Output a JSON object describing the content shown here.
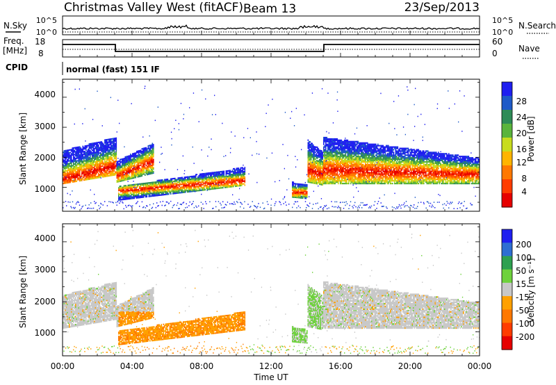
{
  "header": {
    "title": "Christmas Valley West (fitACF)",
    "beam": "Beam 13",
    "date": "23/Sep/2013"
  },
  "sky_panel": {
    "left_label": "N.Sky",
    "right_label": "N.Search",
    "left_ticks": [
      "10^5",
      "10^0"
    ],
    "right_ticks": [
      "10^5",
      "10^0"
    ]
  },
  "freq_panel": {
    "left_label_1": "Freq.",
    "left_label_2": "[MHz]",
    "right_label": "Nave",
    "left_ticks": [
      "18",
      "8"
    ],
    "right_ticks": [
      "60",
      "0"
    ],
    "cpid_label": "CPID",
    "cpid_value": "normal (fast) 151 IF"
  },
  "chart_data": [
    {
      "type": "heatmap",
      "name": "power",
      "ylabel": "Slant Range [km]",
      "y_ticks": [
        "4000",
        "3000",
        "2000",
        "1000"
      ],
      "ylim": [
        200,
        4600
      ],
      "xlim": [
        0,
        24
      ],
      "colorbar_label": "Power [dB]",
      "colorbar_ticks": [
        "28",
        "24",
        "20",
        "16",
        "12",
        "8",
        "4"
      ],
      "colorbar_colors": [
        "#1e1ef0",
        "#1e5ac8",
        "#2e8b57",
        "#5ab43c",
        "#c8dc1e",
        "#ffb400",
        "#ff7800",
        "#ff3c00",
        "#e60000"
      ]
    },
    {
      "type": "heatmap",
      "name": "velocity",
      "ylabel": "Slant Range [km]",
      "y_ticks": [
        "4000",
        "3000",
        "2000",
        "1000"
      ],
      "ylim": [
        200,
        4600
      ],
      "xlim": [
        0,
        24
      ],
      "colorbar_label": "Velocity [m s⁻¹]",
      "colorbar_ticks": [
        "200",
        "100",
        "50",
        "15",
        "-15",
        "-50",
        "-100",
        "-200"
      ],
      "colorbar_colors": [
        "#1e1ef0",
        "#2e6ed2",
        "#2ea050",
        "#6ed23c",
        "#c8c8c8",
        "#ffa000",
        "#ff7800",
        "#ff3c00",
        "#e60000"
      ]
    }
  ],
  "x_axis": {
    "label": "Time UT",
    "ticks": [
      "00:00",
      "04:00",
      "08:00",
      "12:00",
      "16:00",
      "20:00",
      "00:00"
    ]
  }
}
